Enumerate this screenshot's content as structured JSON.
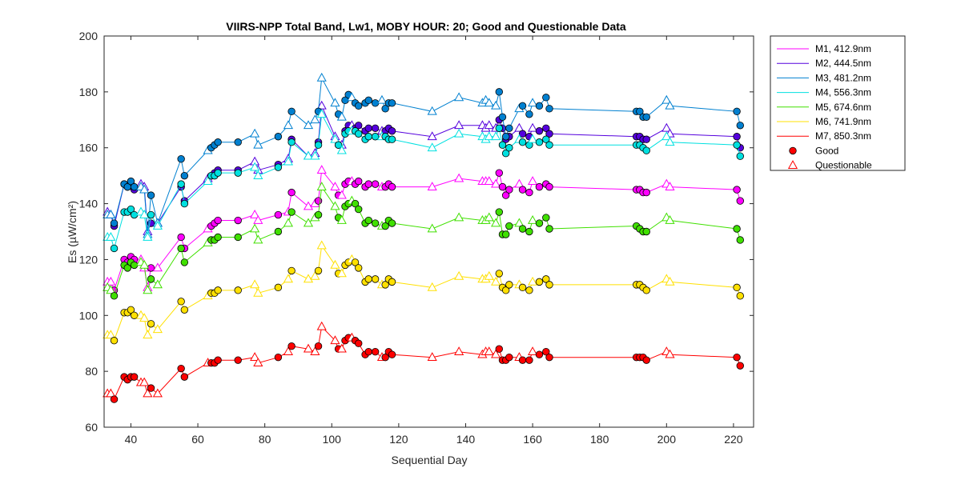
{
  "chart_data": {
    "type": "line",
    "title": "VIIRS-NPP Total Band,  Lw1, MOBY HOUR: 20;  Good and Questionable Data",
    "xlabel": "Sequential Day",
    "ylabel": "Es (µW/cm²)",
    "xlim": [
      32,
      226
    ],
    "ylim": [
      60,
      200
    ],
    "xticks": [
      40,
      60,
      80,
      100,
      120,
      140,
      160,
      180,
      200,
      220
    ],
    "yticks": [
      60,
      80,
      100,
      120,
      140,
      160,
      180,
      200
    ],
    "grid": false,
    "legend_position": "outside-right",
    "x": [
      33,
      34,
      35,
      38,
      39,
      40,
      41,
      43,
      44,
      45,
      46,
      48,
      55,
      56,
      63,
      64,
      65,
      66,
      72,
      77,
      78,
      84,
      87,
      88,
      93,
      95,
      96,
      97,
      101,
      102,
      103,
      104,
      105,
      106,
      107,
      108,
      110,
      111,
      113,
      115,
      116,
      117,
      118,
      130,
      138,
      145,
      146,
      147,
      149,
      150,
      151,
      152,
      153,
      156,
      157,
      159,
      160,
      162,
      164,
      165,
      191,
      192,
      193,
      194,
      200,
      201,
      221,
      222
    ],
    "questionable": [
      true,
      true,
      false,
      false,
      false,
      false,
      false,
      true,
      true,
      true,
      false,
      true,
      false,
      false,
      true,
      false,
      false,
      false,
      false,
      true,
      true,
      false,
      true,
      false,
      true,
      true,
      false,
      true,
      true,
      false,
      true,
      false,
      false,
      true,
      false,
      false,
      false,
      false,
      false,
      true,
      false,
      false,
      false,
      true,
      true,
      true,
      true,
      true,
      true,
      false,
      false,
      false,
      false,
      true,
      false,
      false,
      true,
      false,
      false,
      false,
      false,
      false,
      false,
      false,
      true,
      true,
      false,
      false
    ],
    "legend_good": "Good",
    "legend_questionable": "Questionable",
    "series": [
      {
        "name": "M1, 412.9nm",
        "color": "#ff00ff",
        "values": [
          112,
          112,
          109,
          120,
          119,
          121,
          120,
          120,
          117,
          110,
          117,
          117,
          128,
          124,
          131,
          132,
          133,
          134,
          134,
          136,
          134,
          136,
          137,
          144,
          139,
          140,
          141,
          152,
          146,
          143,
          143,
          147,
          148,
          148,
          147,
          148,
          146,
          147,
          147,
          146,
          146,
          147,
          146,
          146,
          149,
          148,
          148,
          148,
          147,
          151,
          146,
          143,
          145,
          147,
          145,
          144,
          148,
          146,
          147,
          146,
          145,
          145,
          144,
          144,
          147,
          146,
          145,
          141
        ]
      },
      {
        "name": "M2, 444.5nm",
        "color": "#5500dd",
        "values": [
          137,
          136,
          132,
          147,
          146,
          147,
          145,
          147,
          146,
          130,
          133,
          133,
          146,
          141,
          149,
          150,
          151,
          152,
          152,
          155,
          152,
          154,
          156,
          163,
          157,
          158,
          162,
          175,
          164,
          161,
          161,
          166,
          168,
          168,
          167,
          168,
          166,
          167,
          167,
          166,
          166,
          167,
          166,
          164,
          168,
          168,
          167,
          168,
          167,
          170,
          167,
          163,
          164,
          167,
          165,
          164,
          167,
          166,
          167,
          165,
          164,
          164,
          163,
          163,
          167,
          165,
          164,
          160
        ]
      },
      {
        "name": "M3, 481.2nm",
        "color": "#0080d0",
        "values": [
          136,
          136,
          133,
          147,
          146,
          148,
          146,
          146,
          145,
          129,
          143,
          133,
          156,
          150,
          159,
          160,
          161,
          162,
          162,
          165,
          161,
          164,
          168,
          173,
          168,
          170,
          173,
          185,
          176,
          172,
          171,
          177,
          179,
          178,
          176,
          175,
          176,
          177,
          176,
          177,
          174,
          176,
          176,
          173,
          178,
          176,
          177,
          176,
          175,
          180,
          171,
          164,
          167,
          174,
          175,
          172,
          176,
          175,
          178,
          174,
          173,
          173,
          171,
          171,
          177,
          175,
          173,
          168
        ]
      },
      {
        "name": "M4, 556.3nm",
        "color": "#00e0e0",
        "values": [
          128,
          128,
          124,
          137,
          137,
          138,
          136,
          137,
          136,
          128,
          136,
          132,
          147,
          140,
          148,
          150,
          150,
          151,
          151,
          153,
          150,
          153,
          155,
          162,
          157,
          157,
          161,
          172,
          163,
          161,
          159,
          165,
          166,
          166,
          166,
          165,
          163,
          164,
          164,
          164,
          164,
          163,
          163,
          160,
          165,
          164,
          163,
          164,
          164,
          167,
          161,
          158,
          160,
          163,
          162,
          161,
          163,
          162,
          163,
          161,
          161,
          161,
          160,
          159,
          164,
          162,
          161,
          157
        ]
      },
      {
        "name": "M5, 674.6nm",
        "color": "#40e000",
        "values": [
          110,
          109,
          107,
          118,
          117,
          119,
          118,
          119,
          118,
          109,
          113,
          111,
          124,
          119,
          126,
          127,
          127,
          128,
          128,
          131,
          127,
          130,
          133,
          137,
          133,
          135,
          136,
          146,
          139,
          135,
          134,
          139,
          140,
          141,
          140,
          138,
          133,
          134,
          133,
          132,
          132,
          134,
          133,
          131,
          135,
          134,
          134,
          135,
          133,
          137,
          129,
          129,
          132,
          133,
          131,
          130,
          134,
          133,
          135,
          131,
          132,
          131,
          130,
          130,
          135,
          134,
          131,
          127
        ]
      },
      {
        "name": "M6, 741.9nm",
        "color": "#ffe000",
        "values": [
          93,
          93,
          91,
          101,
          101,
          102,
          100,
          100,
          99,
          93,
          97,
          95,
          105,
          102,
          107,
          108,
          108,
          109,
          109,
          111,
          108,
          110,
          113,
          116,
          113,
          114,
          116,
          125,
          118,
          115,
          115,
          118,
          119,
          120,
          119,
          117,
          112,
          113,
          113,
          111,
          111,
          113,
          112,
          110,
          114,
          113,
          113,
          114,
          112,
          115,
          110,
          109,
          111,
          111,
          110,
          109,
          112,
          112,
          113,
          111,
          111,
          111,
          110,
          109,
          113,
          112,
          110,
          107
        ]
      },
      {
        "name": "M7, 850.3nm",
        "color": "#ff0000",
        "values": [
          72,
          72,
          70,
          78,
          77,
          78,
          78,
          76,
          76,
          72,
          74,
          72,
          81,
          78,
          83,
          83,
          83,
          84,
          84,
          85,
          83,
          85,
          87,
          89,
          88,
          87,
          89,
          96,
          91,
          88,
          88,
          91,
          92,
          92,
          91,
          90,
          86,
          87,
          87,
          85,
          85,
          87,
          86,
          85,
          87,
          86,
          87,
          87,
          86,
          88,
          84,
          84,
          85,
          85,
          84,
          84,
          87,
          86,
          87,
          85,
          85,
          85,
          85,
          84,
          87,
          86,
          85,
          82
        ]
      }
    ]
  }
}
